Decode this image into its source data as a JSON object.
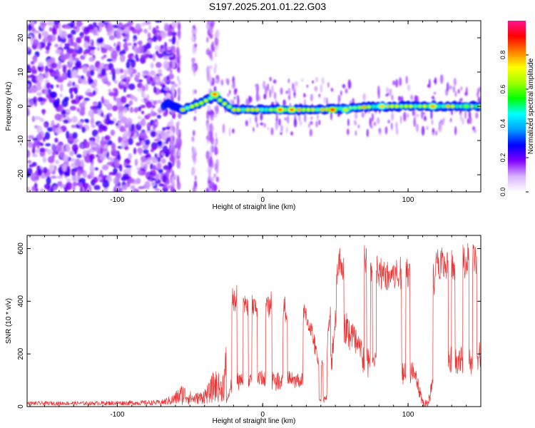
{
  "title": "S197.2025.201.01.22.G03",
  "chart_data": [
    {
      "type": "heatmap",
      "xlabel": "Height of straight line (km)",
      "ylabel": "Frequency (Hz)",
      "xlim": [
        -162,
        150
      ],
      "ylim": [
        -25,
        25
      ],
      "x_ticks": [
        -100,
        0,
        100
      ],
      "x_tick_labels": [
        "-100",
        "0",
        "100"
      ],
      "y_ticks": [
        -20,
        -10,
        0,
        10,
        20
      ],
      "y_tick_labels": [
        "-20",
        "-10",
        "0",
        "10",
        "20"
      ],
      "colorbar": {
        "label": "Normalized spectral amplitude",
        "range": [
          0,
          1
        ],
        "ticks": [
          0.0,
          0.2,
          0.4,
          0.6,
          0.8
        ],
        "tick_labels": [
          "0.0",
          "0.2",
          "0.4",
          "0.6",
          "0.8"
        ],
        "colors": [
          "#ffffff",
          "#d9b3ff",
          "#7f00ff",
          "#0000ff",
          "#00a0ff",
          "#00ffff",
          "#00ff00",
          "#a0ff00",
          "#ffff00",
          "#ff8000",
          "#ff0000",
          "#ff1493"
        ]
      },
      "ridge": {
        "description_points": [
          {
            "x": -67,
            "y": 1
          },
          {
            "x": -55,
            "y": -1
          },
          {
            "x": -42,
            "y": 1
          },
          {
            "x": -33,
            "y": 3
          },
          {
            "x": -27,
            "y": 1
          },
          {
            "x": -20,
            "y": -1
          },
          {
            "x": 0,
            "y": -1
          },
          {
            "x": 40,
            "y": -1
          },
          {
            "x": 80,
            "y": 0
          },
          {
            "x": 120,
            "y": 0
          },
          {
            "x": 150,
            "y": 0
          }
        ],
        "peaks": [
          {
            "x": -33,
            "y": 3.5,
            "amp": 0.85
          },
          {
            "x": 12,
            "y": -1,
            "amp": 0.85
          },
          {
            "x": 20,
            "y": -1,
            "amp": 0.85
          },
          {
            "x": 48,
            "y": -1,
            "amp": 0.9
          },
          {
            "x": 57,
            "y": -1,
            "amp": 0.7
          },
          {
            "x": 82,
            "y": 0,
            "amp": 0.75
          },
          {
            "x": 117,
            "y": 0,
            "amp": 0.8
          },
          {
            "x": 140,
            "y": 0,
            "amp": 0.6
          }
        ]
      },
      "noise_region": {
        "x_from": -162,
        "x_to": -60
      }
    },
    {
      "type": "line",
      "xlabel": "Height of straight line (km)",
      "ylabel": "SNR (10 * v/v)",
      "xlim": [
        -162,
        150
      ],
      "ylim": [
        0,
        650
      ],
      "x_ticks": [
        -100,
        0,
        100
      ],
      "x_tick_labels": [
        "-100",
        "0",
        "100"
      ],
      "y_ticks": [
        0,
        200,
        400,
        600
      ],
      "y_tick_labels": [
        "0",
        "200",
        "400",
        "600"
      ],
      "color": "#ee3333",
      "envelope": [
        {
          "x": -162,
          "y": 20
        },
        {
          "x": -120,
          "y": 20
        },
        {
          "x": -70,
          "y": 25
        },
        {
          "x": -62,
          "y": 45
        },
        {
          "x": -55,
          "y": 90
        },
        {
          "x": -48,
          "y": 50
        },
        {
          "x": -42,
          "y": 60
        },
        {
          "x": -37,
          "y": 90
        },
        {
          "x": -33,
          "y": 150
        },
        {
          "x": -28,
          "y": 110
        },
        {
          "x": -24,
          "y": 300
        },
        {
          "x": -21,
          "y": 470
        },
        {
          "x": -17,
          "y": 440
        },
        {
          "x": -12,
          "y": 420
        },
        {
          "x": -6,
          "y": 430
        },
        {
          "x": 0,
          "y": 420
        },
        {
          "x": 6,
          "y": 440
        },
        {
          "x": 13,
          "y": 420
        },
        {
          "x": 20,
          "y": 400
        },
        {
          "x": 27,
          "y": 410
        },
        {
          "x": 33,
          "y": 330
        },
        {
          "x": 38,
          "y": 200
        },
        {
          "x": 43,
          "y": 160
        },
        {
          "x": 48,
          "y": 500
        },
        {
          "x": 53,
          "y": 620
        },
        {
          "x": 58,
          "y": 560
        },
        {
          "x": 63,
          "y": 560
        },
        {
          "x": 70,
          "y": 610
        },
        {
          "x": 76,
          "y": 580
        },
        {
          "x": 82,
          "y": 550
        },
        {
          "x": 88,
          "y": 560
        },
        {
          "x": 93,
          "y": 550
        },
        {
          "x": 98,
          "y": 560
        },
        {
          "x": 103,
          "y": 600
        },
        {
          "x": 108,
          "y": 550
        },
        {
          "x": 112,
          "y": 300
        },
        {
          "x": 115,
          "y": 500
        },
        {
          "x": 120,
          "y": 600
        },
        {
          "x": 127,
          "y": 590
        },
        {
          "x": 133,
          "y": 570
        },
        {
          "x": 139,
          "y": 620
        },
        {
          "x": 144,
          "y": 650
        },
        {
          "x": 150,
          "y": 530
        }
      ],
      "floor": [
        {
          "x": -162,
          "y": 5
        },
        {
          "x": -60,
          "y": 5
        },
        {
          "x": -40,
          "y": 10
        },
        {
          "x": -25,
          "y": 20
        },
        {
          "x": -20,
          "y": 100
        },
        {
          "x": 0,
          "y": 110
        },
        {
          "x": 30,
          "y": 100
        },
        {
          "x": 38,
          "y": 20
        },
        {
          "x": 45,
          "y": 40
        },
        {
          "x": 50,
          "y": 350
        },
        {
          "x": 60,
          "y": 300
        },
        {
          "x": 70,
          "y": 190
        },
        {
          "x": 90,
          "y": 150
        },
        {
          "x": 105,
          "y": 140
        },
        {
          "x": 110,
          "y": 10
        },
        {
          "x": 114,
          "y": 10
        },
        {
          "x": 118,
          "y": 170
        },
        {
          "x": 140,
          "y": 180
        },
        {
          "x": 150,
          "y": 200
        }
      ]
    }
  ]
}
